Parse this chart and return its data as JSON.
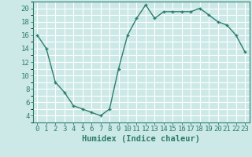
{
  "x": [
    0,
    1,
    2,
    3,
    4,
    5,
    6,
    7,
    8,
    9,
    10,
    11,
    12,
    13,
    14,
    15,
    16,
    17,
    18,
    19,
    20,
    21,
    22,
    23
  ],
  "y": [
    16,
    14,
    9,
    7.5,
    5.5,
    5,
    4.5,
    4,
    5,
    11,
    16,
    18.5,
    20.5,
    18.5,
    19.5,
    19.5,
    19.5,
    19.5,
    20,
    19,
    18,
    17.5,
    16,
    13.5
  ],
  "line_color": "#2e7d6e",
  "marker": "+",
  "bg_color": "#cce9e8",
  "grid_color": "#ffffff",
  "xlabel": "Humidex (Indice chaleur)",
  "ylim": [
    3,
    21
  ],
  "yticks": [
    4,
    6,
    8,
    10,
    12,
    14,
    16,
    18,
    20
  ],
  "xticks": [
    0,
    1,
    2,
    3,
    4,
    5,
    6,
    7,
    8,
    9,
    10,
    11,
    12,
    13,
    14,
    15,
    16,
    17,
    18,
    19,
    20,
    21,
    22,
    23
  ],
  "font_color": "#2e7d6e",
  "tick_fontsize": 6.5,
  "label_fontsize": 7.5
}
